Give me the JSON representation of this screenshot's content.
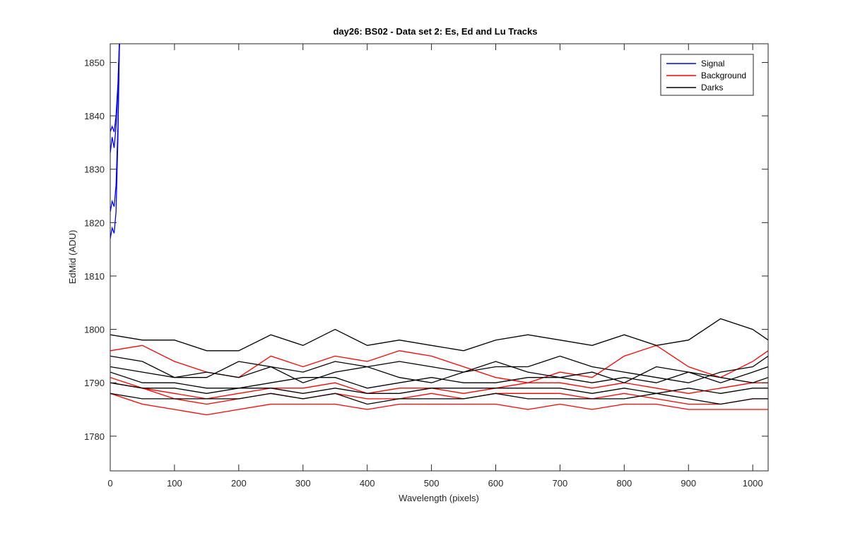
{
  "chart_data": {
    "type": "line",
    "title": "day26: BS02 - Data set 2: Es, Ed and Lu Tracks",
    "xlabel": "Wavelength (pixels)",
    "ylabel": "EdMid (ADU)",
    "xlim": [
      0,
      1024
    ],
    "ylim": [
      1773.5,
      1853.5
    ],
    "x_ticks": [
      0,
      100,
      200,
      300,
      400,
      500,
      600,
      700,
      800,
      900,
      1000
    ],
    "y_ticks": [
      1780,
      1790,
      1800,
      1810,
      1820,
      1830,
      1840,
      1850
    ],
    "grid": false,
    "legend_position": "top-right",
    "legend": [
      {
        "label": "Signal",
        "color": "#0000ff"
      },
      {
        "label": "Background",
        "color": "#ff0000"
      },
      {
        "label": "Darks",
        "color": "#000000"
      }
    ],
    "series": [
      {
        "group": "Signal",
        "color": "#0000ff",
        "x": [
          0,
          3,
          6,
          9,
          12,
          14,
          15
        ],
        "y": [
          1833,
          1836,
          1834,
          1838,
          1845,
          1853,
          1856
        ]
      },
      {
        "group": "Signal",
        "color": "#0000ff",
        "x": [
          0,
          3,
          6,
          9,
          12,
          14,
          15
        ],
        "y": [
          1822,
          1824,
          1823,
          1827,
          1838,
          1852,
          1856
        ]
      },
      {
        "group": "Signal",
        "color": "#0000ff",
        "x": [
          0,
          3,
          6,
          9,
          12,
          14,
          15
        ],
        "y": [
          1817,
          1819,
          1818,
          1822,
          1836,
          1851,
          1856
        ]
      },
      {
        "group": "Signal",
        "color": "#0000ff",
        "x": [
          0,
          3,
          6,
          9,
          12,
          14,
          15
        ],
        "y": [
          1837,
          1838,
          1837,
          1840,
          1846,
          1853,
          1856
        ]
      },
      {
        "group": "Background",
        "color": "#ff0000",
        "x": [
          0,
          50,
          100,
          150,
          200,
          250,
          300,
          350,
          400,
          450,
          500,
          550,
          600,
          650,
          700,
          750,
          800,
          850,
          900,
          950,
          1000,
          1024
        ],
        "y": [
          1796,
          1797,
          1794,
          1792,
          1791,
          1795,
          1793,
          1795,
          1794,
          1796,
          1795,
          1793,
          1791,
          1790,
          1792,
          1791,
          1795,
          1797,
          1793,
          1791,
          1794,
          1796
        ]
      },
      {
        "group": "Background",
        "color": "#ff0000",
        "x": [
          0,
          50,
          100,
          150,
          200,
          250,
          300,
          350,
          400,
          450,
          500,
          550,
          600,
          650,
          700,
          750,
          800,
          850,
          900,
          950,
          1000,
          1024
        ],
        "y": [
          1790,
          1789,
          1788,
          1787,
          1788,
          1789,
          1789,
          1790,
          1788,
          1789,
          1789,
          1788,
          1789,
          1790,
          1790,
          1789,
          1790,
          1789,
          1788,
          1789,
          1790,
          1790
        ]
      },
      {
        "group": "Background",
        "color": "#ff0000",
        "x": [
          0,
          50,
          100,
          150,
          200,
          250,
          300,
          350,
          400,
          450,
          500,
          550,
          600,
          650,
          700,
          750,
          800,
          850,
          900,
          950,
          1000,
          1024
        ],
        "y": [
          1788,
          1786,
          1785,
          1784,
          1785,
          1786,
          1786,
          1786,
          1785,
          1786,
          1786,
          1786,
          1786,
          1785,
          1786,
          1785,
          1786,
          1786,
          1785,
          1785,
          1785,
          1785
        ]
      },
      {
        "group": "Background",
        "color": "#ff0000",
        "x": [
          0,
          50,
          100,
          150,
          200,
          250,
          300,
          350,
          400,
          450,
          500,
          550,
          600,
          650,
          700,
          750,
          800,
          850,
          900,
          950,
          1000,
          1024
        ],
        "y": [
          1791,
          1789,
          1787,
          1786,
          1787,
          1788,
          1787,
          1788,
          1787,
          1787,
          1788,
          1787,
          1788,
          1788,
          1788,
          1787,
          1788,
          1787,
          1786,
          1786,
          1787,
          1787
        ]
      },
      {
        "group": "Darks",
        "color": "#000000",
        "x": [
          0,
          50,
          100,
          150,
          200,
          250,
          300,
          350,
          400,
          450,
          500,
          550,
          600,
          650,
          700,
          750,
          800,
          850,
          900,
          950,
          1000,
          1024
        ],
        "y": [
          1799,
          1798,
          1798,
          1796,
          1796,
          1799,
          1797,
          1800,
          1797,
          1798,
          1797,
          1796,
          1798,
          1799,
          1798,
          1797,
          1799,
          1797,
          1798,
          1802,
          1800,
          1798
        ]
      },
      {
        "group": "Darks",
        "color": "#000000",
        "x": [
          0,
          50,
          100,
          150,
          200,
          250,
          300,
          350,
          400,
          450,
          500,
          550,
          600,
          650,
          700,
          750,
          800,
          850,
          900,
          950,
          1000,
          1024
        ],
        "y": [
          1795,
          1794,
          1791,
          1792,
          1791,
          1793,
          1792,
          1794,
          1793,
          1794,
          1793,
          1792,
          1793,
          1793,
          1795,
          1793,
          1792,
          1791,
          1790,
          1792,
          1793,
          1795
        ]
      },
      {
        "group": "Darks",
        "color": "#000000",
        "x": [
          0,
          50,
          100,
          150,
          200,
          250,
          300,
          350,
          400,
          450,
          500,
          550,
          600,
          650,
          700,
          750,
          800,
          850,
          900,
          950,
          1000,
          1024
        ],
        "y": [
          1792,
          1790,
          1790,
          1789,
          1789,
          1790,
          1791,
          1791,
          1789,
          1790,
          1791,
          1790,
          1790,
          1791,
          1791,
          1790,
          1791,
          1790,
          1792,
          1791,
          1790,
          1791
        ]
      },
      {
        "group": "Darks",
        "color": "#000000",
        "x": [
          0,
          50,
          100,
          150,
          200,
          250,
          300,
          350,
          400,
          450,
          500,
          550,
          600,
          650,
          700,
          750,
          800,
          850,
          900,
          950,
          1000,
          1024
        ],
        "y": [
          1790,
          1789,
          1789,
          1788,
          1789,
          1789,
          1788,
          1789,
          1788,
          1788,
          1789,
          1789,
          1789,
          1789,
          1789,
          1788,
          1789,
          1788,
          1789,
          1788,
          1789,
          1789
        ]
      },
      {
        "group": "Darks",
        "color": "#000000",
        "x": [
          0,
          50,
          100,
          150,
          200,
          250,
          300,
          350,
          400,
          450,
          500,
          550,
          600,
          650,
          700,
          750,
          800,
          850,
          900,
          950,
          1000,
          1024
        ],
        "y": [
          1788,
          1787,
          1787,
          1787,
          1787,
          1788,
          1787,
          1788,
          1786,
          1787,
          1787,
          1787,
          1788,
          1787,
          1787,
          1787,
          1787,
          1788,
          1787,
          1786,
          1787,
          1787
        ]
      },
      {
        "group": "Darks",
        "color": "#000000",
        "x": [
          0,
          50,
          100,
          150,
          200,
          250,
          300,
          350,
          400,
          450,
          500,
          550,
          600,
          650,
          700,
          750,
          800,
          850,
          900,
          950,
          1000,
          1024
        ],
        "y": [
          1793,
          1792,
          1791,
          1791,
          1794,
          1793,
          1790,
          1792,
          1793,
          1791,
          1790,
          1792,
          1794,
          1792,
          1791,
          1792,
          1790,
          1793,
          1792,
          1790,
          1792,
          1793
        ]
      }
    ]
  }
}
